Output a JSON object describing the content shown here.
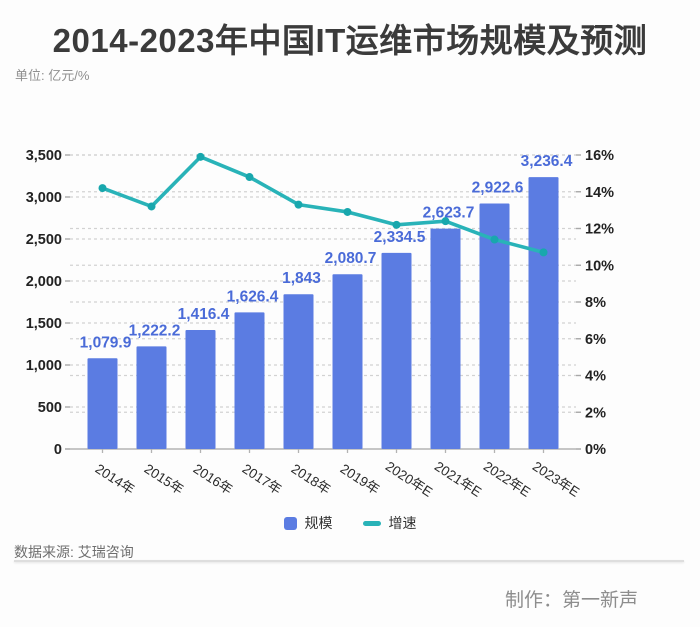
{
  "page": {
    "title": "2014-2023年中国IT运维市场规模及预测",
    "unit_label": "单位: 亿元/%"
  },
  "colors": {
    "bar": "#5b7ce2",
    "bar_value_label": "#4a6bd8",
    "line": "#29b3b8",
    "line_marker": "#18a7ad",
    "grid": "#d2d2d2",
    "axis": "#b3b3b3",
    "tick": "#a8a8a8",
    "tick_text": "#222222",
    "x_label_text": "#2b2b2b"
  },
  "chart_data": {
    "type": "bar",
    "subtype": "combo-bar-line-dual-axis",
    "title": "2014-2023年中国IT运维市场规模及预测",
    "unit": "亿元/%",
    "categories": [
      "2014年",
      "2015年",
      "2016年",
      "2017年",
      "2018年",
      "2019年",
      "2020年E",
      "2021年E",
      "2022年E",
      "2023年E"
    ],
    "series": [
      {
        "name": "规模",
        "type": "bar",
        "axis": "left",
        "unit": "亿元",
        "values": [
          1079.9,
          1222.2,
          1416.4,
          1626.4,
          1843,
          2080.7,
          2334.5,
          2623.7,
          2922.6,
          3236.4
        ],
        "value_labels": [
          "1,079.9",
          "1,222.2",
          "1,416.4",
          "1,626.4",
          "1,843",
          "2,080.7",
          "2,334.5",
          "2,623.7",
          "2,922.6",
          "3,236.4"
        ]
      },
      {
        "name": "增速",
        "type": "line",
        "axis": "right",
        "unit": "%",
        "values": [
          14.2,
          13.2,
          15.9,
          14.8,
          13.3,
          12.9,
          12.2,
          12.4,
          11.4,
          10.7
        ]
      }
    ],
    "left_axis": {
      "min": 0,
      "max": 3500,
      "tick_step": 500,
      "tick_labels": [
        "0",
        "500",
        "1,000",
        "1,500",
        "2,000",
        "2,500",
        "3,000",
        "3,500"
      ]
    },
    "right_axis": {
      "min": 0,
      "max": 16,
      "tick_step": 2,
      "tick_labels": [
        "0%",
        "2%",
        "4%",
        "6%",
        "8%",
        "10%",
        "12%",
        "14%",
        "16%"
      ]
    },
    "grid": true,
    "legend_position": "bottom"
  },
  "legend": {
    "bar_label": "规模",
    "line_label": "增速"
  },
  "footer": {
    "source": "数据来源: 艾瑞咨询",
    "credit": "制作：第一新声"
  }
}
